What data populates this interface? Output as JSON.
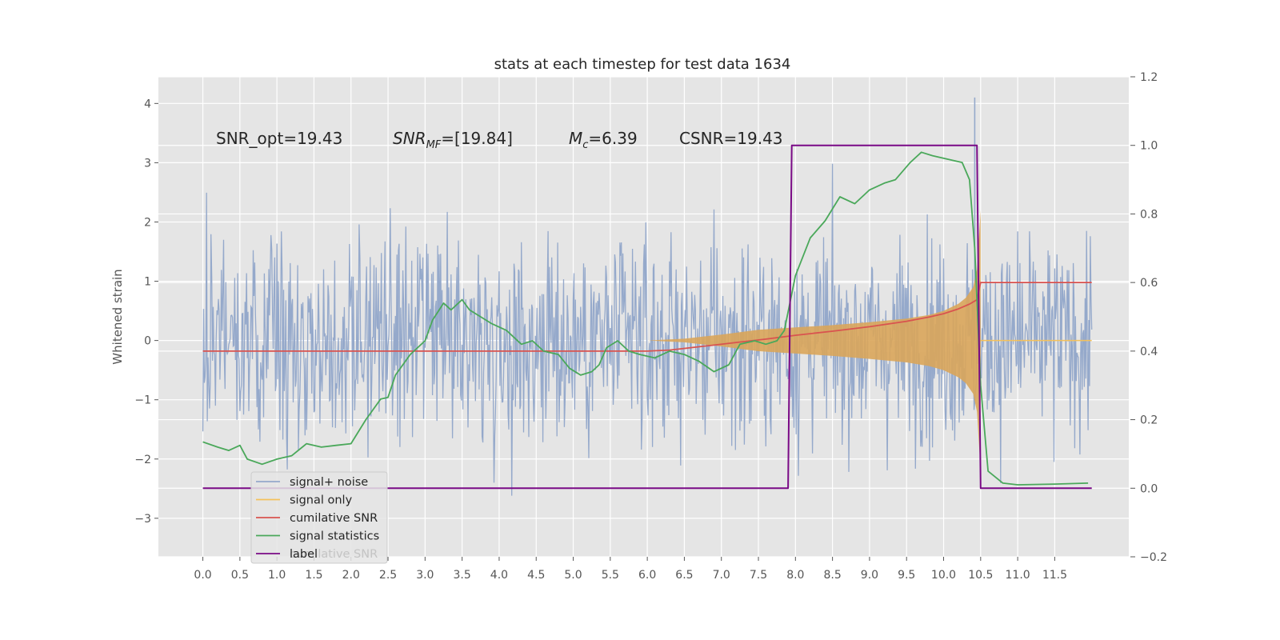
{
  "chart_data": {
    "type": "line",
    "title": "stats at each timestep for test data 1634",
    "ylabel": "Whitened strain",
    "xlabel": "",
    "xlim": [
      -0.6,
      12.5
    ],
    "ylim": [
      -3.65,
      4.45
    ],
    "y2lim": [
      -0.2,
      1.2
    ],
    "grid": true,
    "legend_position": "lower-left",
    "x_ticks": [
      "0.0",
      "0.5",
      "1.0",
      "1.5",
      "2.0",
      "2.5",
      "3.0",
      "3.5",
      "4.0",
      "4.5",
      "5.0",
      "5.5",
      "6.0",
      "6.5",
      "7.0",
      "7.5",
      "8.0",
      "8.5",
      "9.0",
      "9.5",
      "10.0",
      "10.5",
      "11.0",
      "11.5"
    ],
    "y_ticks": [
      -3,
      -2,
      -1,
      0,
      1,
      2,
      3,
      4
    ],
    "y2_ticks": [
      -0.2,
      0.0,
      0.2,
      0.4,
      0.6,
      0.8,
      1.0,
      1.2
    ],
    "annotations": {
      "snr_opt": "SNR_opt=19.43",
      "snr_mf_base": "SNR",
      "snr_mf_sub": "MF",
      "snr_mf_rest": "=[19.84]",
      "mc_base": "M",
      "mc_sub": "c",
      "mc_rest": "=6.39",
      "csnr": "CSNR=19.43"
    },
    "legend": [
      "signal+ noise",
      "signal only",
      "cumilative SNR",
      "signal statistics",
      "label"
    ],
    "legend_overlap_text": "cumilative SNR",
    "colors": {
      "noise": "#95a9cb",
      "signal": "#f5c15a",
      "signal_fill": "#d9a55a",
      "cumulative": "#d9534f",
      "statistics": "#4aa85a",
      "label": "#7a0a86",
      "background": "#e5e5e5",
      "grid": "#ffffff"
    },
    "series": [
      {
        "name": "signal+ noise",
        "axis": "left",
        "x_range": [
          0.0,
          12.0
        ],
        "noise_sigma": 0.85,
        "peak_abs": 4.1
      },
      {
        "name": "signal only",
        "axis": "left",
        "x": [
          6.0,
          6.5,
          7.0,
          7.5,
          8.0,
          8.5,
          9.0,
          9.5,
          9.8,
          10.0,
          10.2,
          10.3,
          10.4,
          10.45,
          10.5
        ],
        "amplitude": [
          0.0,
          0.03,
          0.1,
          0.18,
          0.22,
          0.26,
          0.31,
          0.37,
          0.43,
          0.5,
          0.62,
          0.72,
          0.9,
          1.2,
          2.2
        ]
      },
      {
        "name": "cumilative SNR",
        "axis": "right",
        "x": [
          0.0,
          6.0,
          6.3,
          6.8,
          7.2,
          7.6,
          8.0,
          8.5,
          9.0,
          9.5,
          9.8,
          10.0,
          10.2,
          10.35,
          10.45,
          10.5,
          12.0
        ],
        "y": [
          0.4,
          0.4,
          0.403,
          0.415,
          0.425,
          0.435,
          0.446,
          0.458,
          0.471,
          0.487,
          0.499,
          0.509,
          0.523,
          0.537,
          0.55,
          0.6,
          0.6
        ]
      },
      {
        "name": "signal statistics",
        "axis": "right",
        "x": [
          0.0,
          0.2,
          0.35,
          0.5,
          0.6,
          0.8,
          1.0,
          1.2,
          1.4,
          1.6,
          1.8,
          2.0,
          2.2,
          2.4,
          2.5,
          2.6,
          2.8,
          3.0,
          3.1,
          3.25,
          3.35,
          3.5,
          3.6,
          3.75,
          3.9,
          4.1,
          4.3,
          4.45,
          4.6,
          4.8,
          4.95,
          5.1,
          5.25,
          5.35,
          5.45,
          5.6,
          5.75,
          5.9,
          6.1,
          6.3,
          6.5,
          6.7,
          6.9,
          7.1,
          7.25,
          7.45,
          7.6,
          7.75,
          7.85,
          8.0,
          8.2,
          8.4,
          8.6,
          8.8,
          9.0,
          9.2,
          9.35,
          9.55,
          9.7,
          9.85,
          10.05,
          10.25,
          10.35,
          10.42,
          10.5,
          10.6,
          10.8,
          11.0,
          11.5,
          11.95
        ],
        "y": [
          0.135,
          0.12,
          0.11,
          0.125,
          0.085,
          0.07,
          0.085,
          0.095,
          0.13,
          0.12,
          0.125,
          0.13,
          0.2,
          0.26,
          0.265,
          0.33,
          0.39,
          0.43,
          0.49,
          0.54,
          0.52,
          0.55,
          0.52,
          0.5,
          0.48,
          0.46,
          0.42,
          0.43,
          0.4,
          0.39,
          0.35,
          0.33,
          0.34,
          0.36,
          0.41,
          0.43,
          0.4,
          0.39,
          0.38,
          0.4,
          0.39,
          0.37,
          0.34,
          0.36,
          0.42,
          0.43,
          0.42,
          0.43,
          0.46,
          0.62,
          0.73,
          0.78,
          0.85,
          0.83,
          0.87,
          0.89,
          0.9,
          0.95,
          0.98,
          0.97,
          0.96,
          0.95,
          0.9,
          0.7,
          0.3,
          0.05,
          0.015,
          0.01,
          0.012,
          0.015
        ]
      },
      {
        "name": "label",
        "axis": "right",
        "x": [
          0.0,
          7.9,
          7.95,
          10.45,
          10.5,
          12.0
        ],
        "y": [
          0.0,
          0.0,
          1.0,
          1.0,
          0.0,
          0.0
        ]
      }
    ]
  }
}
